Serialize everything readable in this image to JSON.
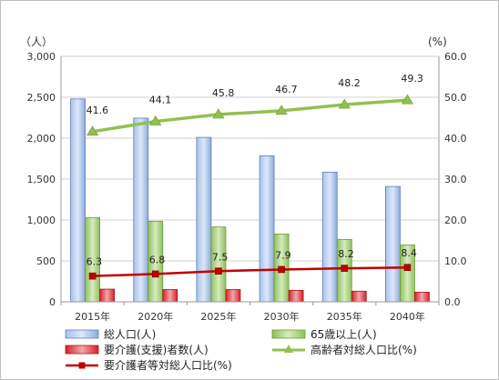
{
  "chart_data": {
    "type": "bar",
    "title": "",
    "y_unit_left": "（人）",
    "y_unit_right": "(%)",
    "categories": [
      "2015年",
      "2020年",
      "2025年",
      "2030年",
      "2035年",
      "2040年"
    ],
    "ylim_left": [
      0,
      3000
    ],
    "ylim_right": [
      0,
      60
    ],
    "yticks_left": [
      "0",
      "500",
      "1,000",
      "1,500",
      "2,000",
      "2,500",
      "3,000"
    ],
    "yticks_right": [
      "0.0",
      "10.0",
      "20.0",
      "30.0",
      "40.0",
      "50.0",
      "60.0"
    ],
    "grid": true,
    "legend_position": "bottom",
    "series": [
      {
        "name": "総人口(人)",
        "type": "bar",
        "axis": "left",
        "color": "#8eaadb",
        "values": [
          2480,
          2245,
          2010,
          1785,
          1585,
          1410
        ]
      },
      {
        "name": "65歳以上(人)",
        "type": "bar",
        "axis": "left",
        "color": "#9bc66f",
        "values": [
          1030,
          985,
          915,
          828,
          762,
          695
        ]
      },
      {
        "name": "要介護(支援)者数(人)",
        "type": "bar",
        "axis": "left",
        "color": "#e0303a",
        "values": [
          155,
          150,
          150,
          140,
          130,
          118
        ]
      },
      {
        "name": "高齢者対総人口比(%)",
        "type": "line",
        "axis": "right",
        "color": "#92c050",
        "marker": "triangle",
        "values": [
          41.6,
          44.1,
          45.8,
          46.7,
          48.2,
          49.3
        ],
        "labels": [
          "41.6",
          "44.1",
          "45.8",
          "46.7",
          "48.2",
          "49.3"
        ]
      },
      {
        "name": "要介護者等対総人口比(%)",
        "type": "line",
        "axis": "right",
        "color": "#c00000",
        "marker": "square",
        "values": [
          6.3,
          6.8,
          7.5,
          7.9,
          8.2,
          8.4
        ],
        "labels": [
          "6.3",
          "6.8",
          "7.5",
          "7.9",
          "8.2",
          "8.4"
        ]
      }
    ]
  }
}
